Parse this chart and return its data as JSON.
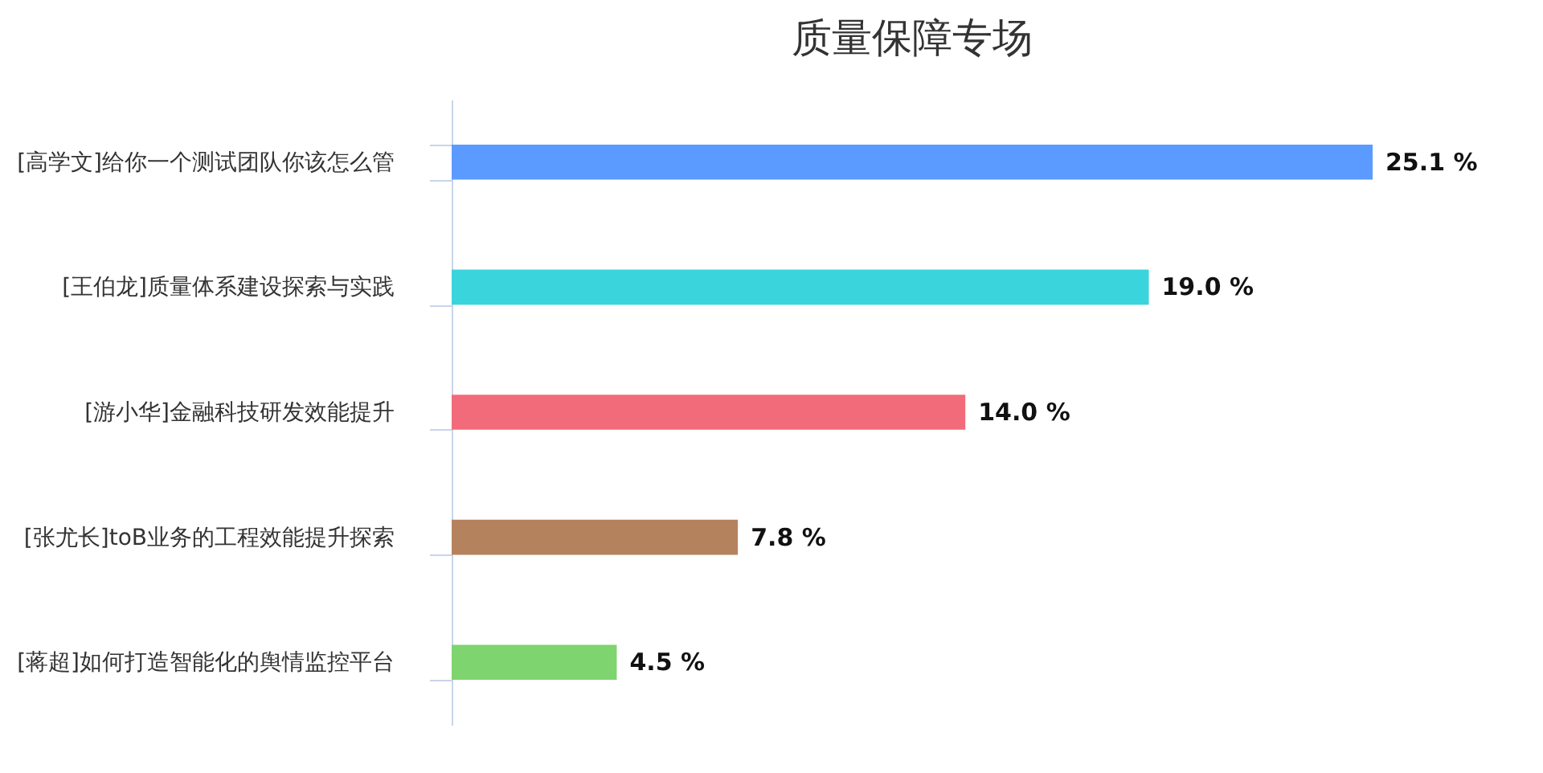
{
  "chart_data": {
    "type": "bar",
    "orientation": "horizontal",
    "title": "质量保障专场",
    "categories": [
      "[高学文]给你一个测试团队你该怎么管",
      "[王伯龙]质量体系建设探索与实践",
      "[游小华]金融科技研发效能提升",
      "[张尤长]toB业务的工程效能提升探索",
      "[蒋超]如何打造智能化的舆情监控平台"
    ],
    "values": [
      25.1,
      19.0,
      14.0,
      7.8,
      4.5
    ],
    "colors": [
      "#5b9bff",
      "#3ad4dc",
      "#f26b7a",
      "#b5825e",
      "#7ed46e"
    ],
    "value_labels": [
      "25.1 %",
      "19.0 %",
      "14.0 %",
      "7.8 %",
      "4.5 %"
    ]
  }
}
